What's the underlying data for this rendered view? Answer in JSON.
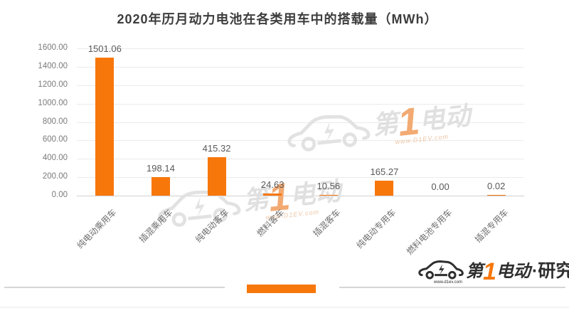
{
  "chart_data": {
    "type": "bar",
    "title": "2020年历月动力电池在各类用车中的搭载量（MWh）",
    "categories": [
      "纯电动乘用车",
      "插混乘用车",
      "纯电动客车",
      "燃料客车",
      "插混客车",
      "纯电动专用车",
      "燃料电池专用车",
      "插混专用车"
    ],
    "values": [
      1501.06,
      198.14,
      415.32,
      24.63,
      10.56,
      165.27,
      0.0,
      0.02
    ],
    "value_labels": [
      "1501.06",
      "198.14",
      "415.32",
      "24.63",
      "10.56",
      "165.27",
      "0.00",
      "0.02"
    ],
    "xlabel": "",
    "ylabel": "",
    "ylim": [
      0,
      1600
    ],
    "ytick_step": 200,
    "yticks": [
      "1600.00",
      "1400.00",
      "1200.00",
      "1000.00",
      "800.00",
      "600.00",
      "400.00",
      "200.00",
      "0.00"
    ],
    "grid": true,
    "legend": "none",
    "bar_color": "#f7770a"
  },
  "watermark": {
    "prefix": "第",
    "one": "1",
    "suffix": "电动",
    "site": "www.D1EV.com"
  },
  "logo": {
    "prefix": "第",
    "one": "1",
    "suffix": "电动",
    "separator": "·",
    "org": "研究院",
    "site": "www.d1ev.com"
  },
  "colors": {
    "bar": "#f7770a",
    "grid_line": "#ebebeb",
    "axis_line": "#cfcfcf",
    "title_text": "#3d3d3d",
    "tick_text": "#7a7a7a",
    "value_text": "#595959",
    "watermark_gray": "#e0e0e0",
    "watermark_one_orange": "#f2aa72",
    "logo_dark": "#2f2f2f"
  }
}
